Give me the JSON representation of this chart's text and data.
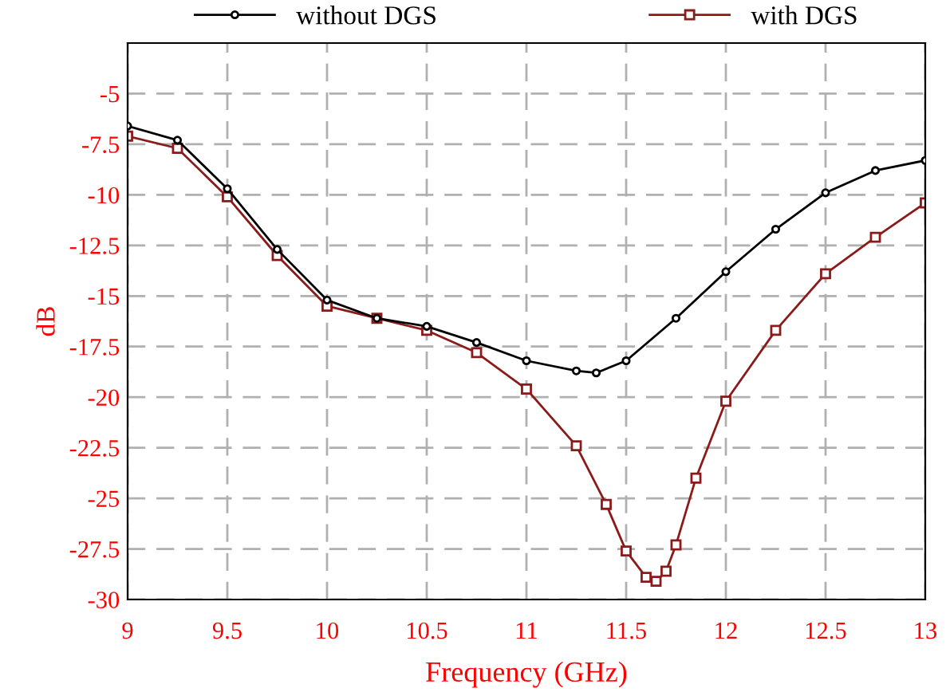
{
  "chart_data": {
    "type": "line",
    "xlabel": "Frequency (GHz)",
    "ylabel": "dB",
    "xlim": [
      9,
      13
    ],
    "xticks": [
      9,
      9.5,
      10,
      10.5,
      11,
      11.5,
      12,
      12.5,
      13
    ],
    "ylim": [
      -30,
      -2.5
    ],
    "yticks": [
      -30,
      -27.5,
      -25,
      -22.5,
      -20,
      -17.5,
      -15,
      -12.5,
      -10,
      -7.5,
      -5
    ],
    "grid": true,
    "legend": "top",
    "series": [
      {
        "name": "without DGS",
        "color": "#000000",
        "marker": "circle",
        "x": [
          9,
          9.25,
          9.5,
          9.75,
          10,
          10.25,
          10.5,
          10.75,
          11,
          11.25,
          11.35,
          11.5,
          11.75,
          12,
          12.25,
          12.5,
          12.75,
          13
        ],
        "values": [
          -6.6,
          -7.3,
          -9.7,
          -12.7,
          -15.2,
          -16.1,
          -16.5,
          -17.3,
          -18.2,
          -18.7,
          -18.8,
          -18.2,
          -16.1,
          -13.8,
          -11.7,
          -9.9,
          -8.8,
          -8.3
        ]
      },
      {
        "name": "with DGS",
        "color": "#8b1a1a",
        "marker": "square",
        "x": [
          9,
          9.25,
          9.5,
          9.75,
          10,
          10.25,
          10.5,
          10.75,
          11,
          11.25,
          11.4,
          11.5,
          11.6,
          11.65,
          11.7,
          11.75,
          11.85,
          12,
          12.25,
          12.5,
          12.75,
          13
        ],
        "values": [
          -7.1,
          -7.7,
          -10.1,
          -13,
          -15.5,
          -16.1,
          -16.7,
          -17.8,
          -19.6,
          -22.4,
          -25.3,
          -27.6,
          -28.9,
          -29.1,
          -28.6,
          -27.3,
          -24,
          -20.2,
          -16.7,
          -13.9,
          -12.1,
          -10.4
        ]
      }
    ]
  }
}
